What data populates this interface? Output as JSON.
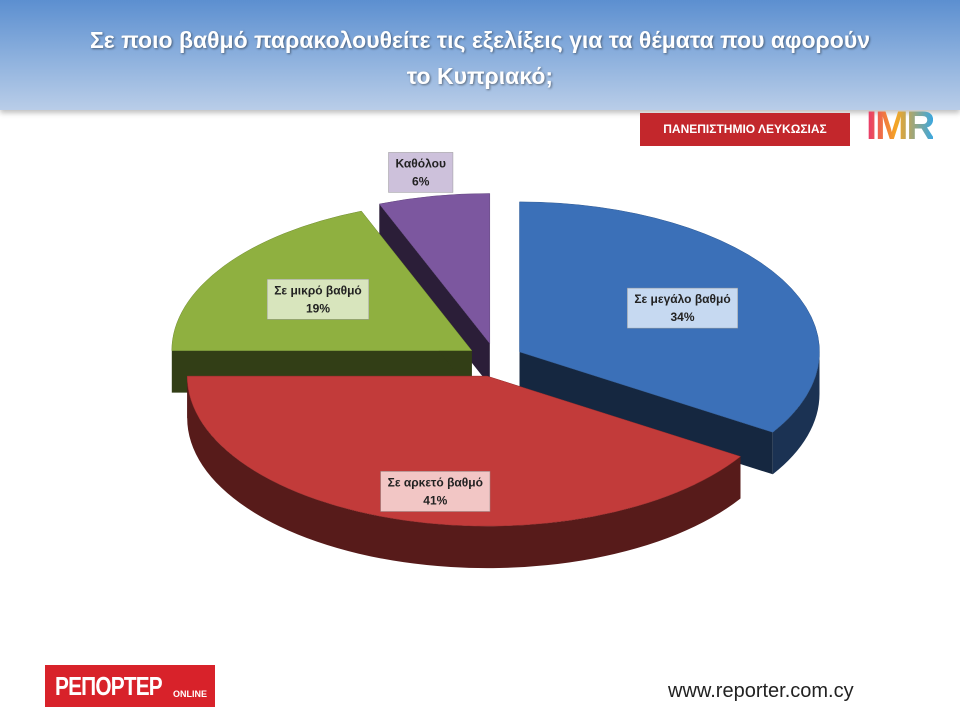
{
  "chart_data": {
    "type": "pie",
    "title": "Σε ποιο βαθμό παρακολουθείτε τις εξελίξεις  για τα θέματα που αφορούν το Κυπριακό;",
    "categories": [
      "Σε μεγάλο βαθμό",
      "Σε αρκετό βαθμό",
      "Σε μικρό βαθμό",
      "Καθόλου"
    ],
    "values": [
      34,
      41,
      19,
      6
    ],
    "value_labels": [
      "34%",
      "41%",
      "19%",
      "6%"
    ],
    "colors": [
      "#3b70b8",
      "#c23b3a",
      "#8fb040",
      "#7c579f"
    ],
    "label_fills": [
      "#c6d9f1",
      "#f2c6c5",
      "#d8e5bd",
      "#cdc1db"
    ]
  },
  "branding": {
    "university": "ΠΑΝΕΠΙΣΤΗΜΙΟ ΛΕΥΚΩΣΙΑΣ",
    "imr": "IMR",
    "reporter": "ΡΕΠΟΡΤΕΡ",
    "reporter_sub": "ONLINE",
    "url": "www.reporter.com.cy"
  }
}
